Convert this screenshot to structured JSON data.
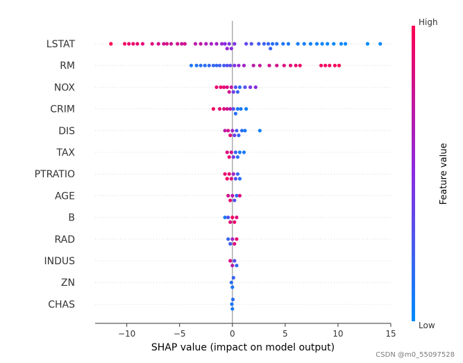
{
  "chart_data": {
    "type": "scatter",
    "subtype": "shap_beeswarm",
    "title": "",
    "xlabel": "SHAP value (impact on model output)",
    "ylabel": "",
    "xlim": [
      -13,
      15
    ],
    "xticks": [
      -10,
      -5,
      0,
      5,
      10,
      15
    ],
    "xtick_labels": [
      "−10",
      "−5",
      "0",
      "5",
      "10",
      "15"
    ],
    "features": [
      "LSTAT",
      "RM",
      "NOX",
      "CRIM",
      "DIS",
      "TAX",
      "PTRATIO",
      "AGE",
      "B",
      "RAD",
      "INDUS",
      "ZN",
      "CHAS"
    ],
    "colorbar": {
      "title": "Feature value",
      "high_label": "High",
      "low_label": "Low",
      "high_color": "#ff0052",
      "mid_color": "#8a2be2",
      "low_color": "#008bfb"
    },
    "series": [
      {
        "name": "LSTAT",
        "points": [
          {
            "x": -11.5,
            "c": 1.0
          },
          {
            "x": -10.2,
            "c": 0.95
          },
          {
            "x": -9.8,
            "c": 0.9
          },
          {
            "x": -9.4,
            "c": 0.92
          },
          {
            "x": -9.0,
            "c": 0.9
          },
          {
            "x": -8.5,
            "c": 0.88
          },
          {
            "x": -7.6,
            "c": 0.85
          },
          {
            "x": -7.0,
            "c": 0.82
          },
          {
            "x": -6.5,
            "c": 0.8
          },
          {
            "x": -6.2,
            "c": 0.83
          },
          {
            "x": -5.8,
            "c": 0.78
          },
          {
            "x": -5.2,
            "c": 0.8
          },
          {
            "x": -4.8,
            "c": 0.76
          },
          {
            "x": -4.5,
            "c": 0.8
          },
          {
            "x": -3.5,
            "c": 0.7
          },
          {
            "x": -3.0,
            "c": 0.72
          },
          {
            "x": -2.5,
            "c": 0.65
          },
          {
            "x": -2.0,
            "c": 0.62
          },
          {
            "x": -1.5,
            "c": 0.6
          },
          {
            "x": -1.0,
            "c": 0.55
          },
          {
            "x": -0.7,
            "c": 0.5
          },
          {
            "x": -0.5,
            "c": 0.55
          },
          {
            "x": -0.3,
            "c": 0.45
          },
          {
            "x": -0.1,
            "c": 0.5
          },
          {
            "x": 0.2,
            "c": 0.45
          },
          {
            "x": 1.3,
            "c": 0.35
          },
          {
            "x": 1.8,
            "c": 0.3
          },
          {
            "x": 2.5,
            "c": 0.25
          },
          {
            "x": 3.0,
            "c": 0.22
          },
          {
            "x": 3.4,
            "c": 0.2
          },
          {
            "x": 3.6,
            "c": 0.2
          },
          {
            "x": 3.8,
            "c": 0.15
          },
          {
            "x": 4.2,
            "c": 0.15
          },
          {
            "x": 4.8,
            "c": 0.12
          },
          {
            "x": 5.3,
            "c": 0.1
          },
          {
            "x": 6.2,
            "c": 0.08
          },
          {
            "x": 6.8,
            "c": 0.08
          },
          {
            "x": 7.4,
            "c": 0.05
          },
          {
            "x": 8.0,
            "c": 0.05
          },
          {
            "x": 8.5,
            "c": 0.04
          },
          {
            "x": 9.0,
            "c": 0.03
          },
          {
            "x": 9.6,
            "c": 0.03
          },
          {
            "x": 10.3,
            "c": 0.02
          },
          {
            "x": 10.7,
            "c": 0.02
          },
          {
            "x": 12.8,
            "c": 0.0
          },
          {
            "x": 14.0,
            "c": 0.0
          }
        ]
      },
      {
        "name": "RM",
        "points": [
          {
            "x": -3.9,
            "c": 0.1
          },
          {
            "x": -3.4,
            "c": 0.12
          },
          {
            "x": -3.0,
            "c": 0.15
          },
          {
            "x": -2.6,
            "c": 0.15
          },
          {
            "x": -2.2,
            "c": 0.18
          },
          {
            "x": -1.8,
            "c": 0.2
          },
          {
            "x": -1.5,
            "c": 0.18
          },
          {
            "x": -1.2,
            "c": 0.22
          },
          {
            "x": -0.8,
            "c": 0.25
          },
          {
            "x": -0.5,
            "c": 0.3
          },
          {
            "x": -0.2,
            "c": 0.35
          },
          {
            "x": 0.2,
            "c": 0.45
          },
          {
            "x": 0.6,
            "c": 0.55
          },
          {
            "x": 1.1,
            "c": 0.6
          },
          {
            "x": 2.0,
            "c": 0.7
          },
          {
            "x": 2.6,
            "c": 0.75
          },
          {
            "x": 3.5,
            "c": 0.8
          },
          {
            "x": 4.2,
            "c": 0.8
          },
          {
            "x": 4.9,
            "c": 0.85
          },
          {
            "x": 5.5,
            "c": 0.88
          },
          {
            "x": 6.0,
            "c": 0.9
          },
          {
            "x": 6.4,
            "c": 0.92
          },
          {
            "x": 8.4,
            "c": 0.95
          },
          {
            "x": 8.8,
            "c": 0.95
          },
          {
            "x": 9.2,
            "c": 0.97
          },
          {
            "x": 9.7,
            "c": 0.97
          },
          {
            "x": 10.1,
            "c": 1.0
          }
        ]
      },
      {
        "name": "NOX",
        "points": [
          {
            "x": -1.5,
            "c": 0.9
          },
          {
            "x": -1.1,
            "c": 0.92
          },
          {
            "x": -0.8,
            "c": 0.88
          },
          {
            "x": -0.5,
            "c": 0.85
          },
          {
            "x": -0.3,
            "c": 0.8
          },
          {
            "x": -0.1,
            "c": 0.75
          },
          {
            "x": 0.1,
            "c": 0.4
          },
          {
            "x": 0.3,
            "c": 0.3
          },
          {
            "x": 0.5,
            "c": 0.2
          },
          {
            "x": 0.7,
            "c": 0.15
          },
          {
            "x": 1.2,
            "c": 0.3
          },
          {
            "x": 1.7,
            "c": 0.45
          },
          {
            "x": 2.2,
            "c": 0.5
          }
        ]
      },
      {
        "name": "CRIM",
        "points": [
          {
            "x": -1.8,
            "c": 0.95
          },
          {
            "x": -1.2,
            "c": 0.9
          },
          {
            "x": -0.8,
            "c": 0.85
          },
          {
            "x": -0.5,
            "c": 0.8
          },
          {
            "x": -0.2,
            "c": 0.7
          },
          {
            "x": 0.1,
            "c": 0.3
          },
          {
            "x": 0.3,
            "c": 0.15
          },
          {
            "x": 0.5,
            "c": 0.1
          },
          {
            "x": 0.8,
            "c": 0.1
          },
          {
            "x": 1.3,
            "c": 0.05
          }
        ]
      },
      {
        "name": "DIS",
        "points": [
          {
            "x": -0.7,
            "c": 0.7
          },
          {
            "x": -0.4,
            "c": 0.8
          },
          {
            "x": -0.2,
            "c": 0.85
          },
          {
            "x": 0.0,
            "c": 0.6
          },
          {
            "x": 0.2,
            "c": 0.4
          },
          {
            "x": 0.4,
            "c": 0.25
          },
          {
            "x": 0.6,
            "c": 0.2
          },
          {
            "x": 0.9,
            "c": 0.15
          },
          {
            "x": 1.2,
            "c": 0.1
          },
          {
            "x": 2.6,
            "c": 0.05
          }
        ]
      },
      {
        "name": "TAX",
        "points": [
          {
            "x": -0.5,
            "c": 0.85
          },
          {
            "x": -0.3,
            "c": 0.9
          },
          {
            "x": -0.1,
            "c": 0.8
          },
          {
            "x": 0.1,
            "c": 0.4
          },
          {
            "x": 0.3,
            "c": 0.2
          },
          {
            "x": 0.5,
            "c": 0.15
          },
          {
            "x": 0.7,
            "c": 0.1
          },
          {
            "x": 1.1,
            "c": 0.1
          }
        ]
      },
      {
        "name": "PTRATIO",
        "points": [
          {
            "x": -0.7,
            "c": 0.9
          },
          {
            "x": -0.5,
            "c": 0.95
          },
          {
            "x": -0.3,
            "c": 0.9
          },
          {
            "x": -0.1,
            "c": 0.85
          },
          {
            "x": 0.1,
            "c": 0.6
          },
          {
            "x": 0.3,
            "c": 0.3
          },
          {
            "x": 0.5,
            "c": 0.2
          },
          {
            "x": 0.7,
            "c": 0.15
          }
        ]
      },
      {
        "name": "AGE",
        "points": [
          {
            "x": -0.4,
            "c": 0.8
          },
          {
            "x": -0.2,
            "c": 0.9
          },
          {
            "x": 0.0,
            "c": 0.7
          },
          {
            "x": 0.2,
            "c": 0.3
          },
          {
            "x": 0.4,
            "c": 0.2
          },
          {
            "x": 0.7,
            "c": 0.85
          }
        ]
      },
      {
        "name": "B",
        "points": [
          {
            "x": -0.7,
            "c": 0.1
          },
          {
            "x": -0.4,
            "c": 0.3
          },
          {
            "x": -0.2,
            "c": 0.85
          },
          {
            "x": 0.0,
            "c": 0.95
          },
          {
            "x": 0.2,
            "c": 0.9
          },
          {
            "x": 0.4,
            "c": 0.85
          }
        ]
      },
      {
        "name": "RAD",
        "points": [
          {
            "x": -0.4,
            "c": 0.2
          },
          {
            "x": -0.2,
            "c": 0.25
          },
          {
            "x": 0.0,
            "c": 0.6
          },
          {
            "x": 0.2,
            "c": 0.85
          },
          {
            "x": 0.4,
            "c": 0.9
          }
        ]
      },
      {
        "name": "INDUS",
        "points": [
          {
            "x": -0.2,
            "c": 0.85
          },
          {
            "x": 0.0,
            "c": 0.7
          },
          {
            "x": 0.2,
            "c": 0.3
          },
          {
            "x": 0.4,
            "c": 0.2
          }
        ]
      },
      {
        "name": "ZN",
        "points": [
          {
            "x": -0.1,
            "c": 0.15
          },
          {
            "x": 0.0,
            "c": 0.1
          },
          {
            "x": 0.1,
            "c": 0.2
          }
        ]
      },
      {
        "name": "CHAS",
        "points": [
          {
            "x": -0.05,
            "c": 0.1
          },
          {
            "x": 0.0,
            "c": 0.1
          },
          {
            "x": 0.05,
            "c": 0.15
          }
        ]
      }
    ]
  },
  "watermark": "CSDN @m0_55097528"
}
